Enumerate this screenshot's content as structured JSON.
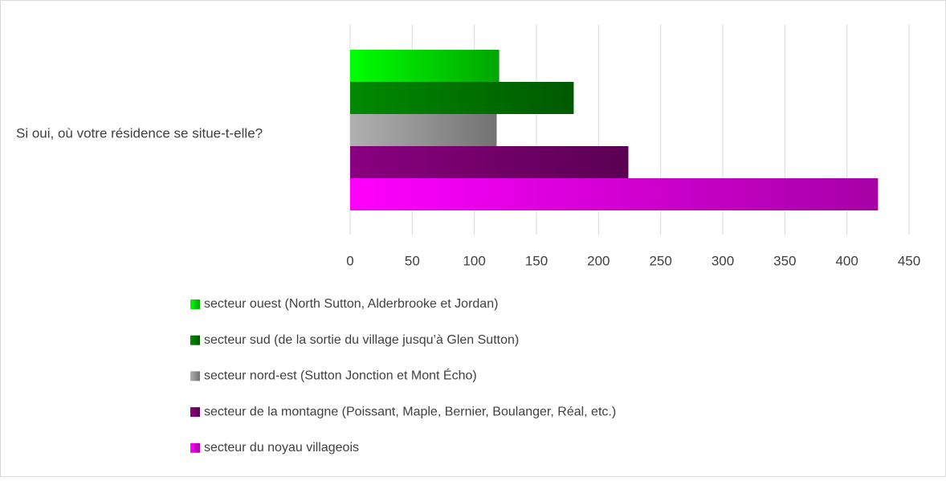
{
  "chart_data": {
    "type": "barh",
    "categories": [
      "Si oui, où votre résidence se situe-t-elle?"
    ],
    "series": [
      {
        "name": "secteur ouest (North Sutton, Alderbrooke et Jordan)",
        "color": "#00ff00",
        "values": [
          120
        ]
      },
      {
        "name": "secteur sud (de la sortie du village jusqu’à Glen Sutton)",
        "color": "#008a00",
        "values": [
          180
        ]
      },
      {
        "name": "secteur nord-est (Sutton Jonction et Mont Écho)",
        "color": "#b0b0b0",
        "values": [
          118
        ]
      },
      {
        "name": "secteur de la montagne (Poissant, Maple, Bernier, Boulanger, Réal, etc.)",
        "color": "#8a0080",
        "values": [
          224
        ]
      },
      {
        "name": "secteur du noyau villageois",
        "color": "#ff00ff",
        "values": [
          425
        ]
      }
    ],
    "xlim": [
      0,
      450
    ],
    "xticks": [
      0,
      50,
      100,
      150,
      200,
      250,
      300,
      350,
      400,
      450
    ],
    "grid": true,
    "legend": "bottom"
  }
}
